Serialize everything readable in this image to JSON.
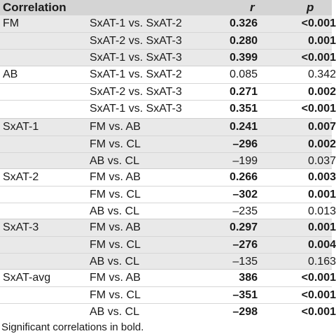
{
  "header": {
    "correlation": "Correlation",
    "r": "r",
    "p": "p"
  },
  "groups": [
    {
      "label": "FM",
      "rows": [
        {
          "cmp": "SxAT-1 vs. SxAT-2",
          "r": "0.326",
          "p": "<0.001",
          "rb": true,
          "pb": true
        },
        {
          "cmp": "SxAT-2 vs. SxAT-3",
          "r": "0.280",
          "p": "0.001",
          "rb": true,
          "pb": true
        },
        {
          "cmp": "SxAT-1 vs. SxAT-3",
          "r": "0.399",
          "p": "<0.001",
          "rb": true,
          "pb": true
        }
      ]
    },
    {
      "label": "AB",
      "rows": [
        {
          "cmp": "SxAT-1 vs. SxAT-2",
          "r": "0.085",
          "p": "0.342",
          "rb": false,
          "pb": false
        },
        {
          "cmp": "SxAT-2 vs. SxAT-3",
          "r": "0.271",
          "p": "0.002",
          "rb": true,
          "pb": true
        },
        {
          "cmp": "SxAT-1 vs. SxAT-3",
          "r": "0.351",
          "p": "<0.001",
          "rb": true,
          "pb": true
        }
      ]
    },
    {
      "label": "SxAT-1",
      "rows": [
        {
          "cmp": "FM vs. AB",
          "r": "0.241",
          "p": "0.007",
          "rb": true,
          "pb": true
        },
        {
          "cmp": "FM vs. CL",
          "r": "–296",
          "p": "0.002",
          "rb": true,
          "pb": true
        },
        {
          "cmp": "AB vs. CL",
          "r": "–199",
          "p": "0.037",
          "rb": false,
          "pb": false
        }
      ]
    },
    {
      "label": "SxAT-2",
      "rows": [
        {
          "cmp": "FM vs. AB",
          "r": "0.266",
          "p": "0.003",
          "rb": true,
          "pb": true
        },
        {
          "cmp": "FM vs. CL",
          "r": "–302",
          "p": "0.001",
          "rb": true,
          "pb": true
        },
        {
          "cmp": "AB vs. CL",
          "r": "–235",
          "p": "0.013",
          "rb": false,
          "pb": false
        }
      ]
    },
    {
      "label": "SxAT-3",
      "rows": [
        {
          "cmp": "FM vs. AB",
          "r": "0.297",
          "p": "0.001",
          "rb": true,
          "pb": true
        },
        {
          "cmp": "FM vs. CL",
          "r": "–276",
          "p": "0.004",
          "rb": true,
          "pb": true
        },
        {
          "cmp": "AB vs. CL",
          "r": "–135",
          "p": "0.163",
          "rb": false,
          "pb": false
        }
      ]
    },
    {
      "label": "SxAT-avg",
      "rows": [
        {
          "cmp": "FM vs. AB",
          "r": "386",
          "p": "<0.001",
          "rb": true,
          "pb": true
        },
        {
          "cmp": "FM vs. CL",
          "r": "–351",
          "p": "<0.001",
          "rb": true,
          "pb": true
        },
        {
          "cmp": "AB vs. CL",
          "r": "–298",
          "p": "<0.001",
          "rb": true,
          "pb": true
        }
      ]
    }
  ],
  "footnote": "Significant correlations in bold."
}
